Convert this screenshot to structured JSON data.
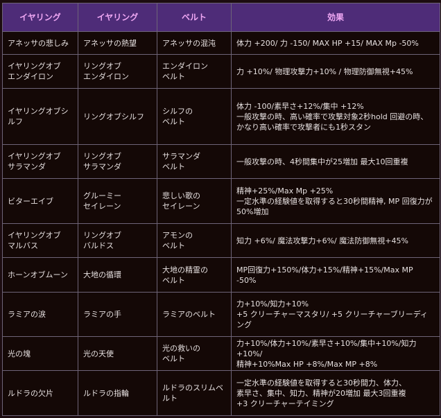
{
  "headers": [
    "イヤリング",
    "イヤリング",
    "ベルト",
    "効果"
  ],
  "rows": [
    [
      "アネッサの悲しみ",
      "アネッサの熱望",
      "アネッサの混沌",
      "体力 +200/ 力 -150/ MAX HP +15/ MAX Mp -50%"
    ],
    [
      "イヤリングオブ\nエンダイロン",
      "リングオブ\nエンダイロン",
      "エンダイロン\nベルト",
      "力 +10%/ 物理攻撃力+10% /  物理防御無視+45%"
    ],
    [
      "イヤリングオブシ\nルフ",
      "リングオブシルフ",
      "シルフの\nベルト",
      "体力 -100/素早さ+12%/集中 +12%\n一般攻撃の時、高い確率で攻撃対象2秒hold 回避の時、\nかなり高い確率で攻撃者にも1秒スタン"
    ],
    [
      "イヤリングオブ\nサラマンダ",
      "リングオブ\nサラマンダ",
      "サラマンダ\nベルト",
      "一般攻撃の時、4秒間集中が25増加 最大10回重複"
    ],
    [
      "ビターエイブ",
      "グルーミー\nセイレーン",
      "悲しい歌の\nセイレーン",
      "精神+25%/Max Mp +25%\n一定水準の経験値を取得すると30秒間精神, MP 回復力が50%増加"
    ],
    [
      "イヤリングオブ\nマルバス",
      "リングオブ\nバルドス",
      "アモンの\nベルト",
      "知力 +6%/ 魔法攻撃力+6%/ 魔法防御無視+45%"
    ],
    [
      "ホーンオブムーン",
      "大地の循環",
      "大地の精霊の\nベルト",
      "MP回復力+150%/体力+15%/精神+15%/Max MP -50%"
    ],
    [
      "ラミアの涙",
      "ラミアの手",
      "ラミアのベルト",
      "力+10%/知力+10%\n+5 クリーチャーマスタリ/ +5 クリーチャーブリーディング"
    ],
    [
      "光の塊",
      "光の天使",
      "光の救いの\nベルト",
      "力+10%/体力+10%/素早さ+10%/集中+10%/知力+10%/\n精神+10%Max HP +8%/Max MP +8%"
    ],
    [
      "ルドラの欠片",
      "ルドラの指輪",
      "ルドラのスリムベ\nルト",
      "一定水準の経験値を取得すると30秒間力、体力、\n素早さ、集中、知力、精神が20増加 最大3回重複\n+3 クリーチャーテイミング"
    ]
  ]
}
